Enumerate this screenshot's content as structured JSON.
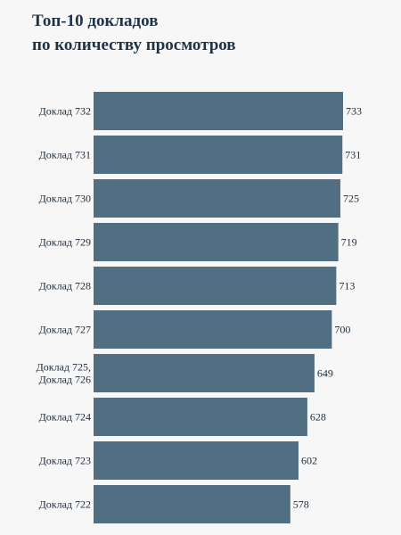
{
  "chart_data": {
    "type": "bar",
    "orientation": "horizontal",
    "title_lines": [
      "Топ-10 докладов",
      "по количеству просмотров"
    ],
    "categories": [
      [
        "Доклад 732"
      ],
      [
        "Доклад 731"
      ],
      [
        "Доклад 730"
      ],
      [
        "Доклад 729"
      ],
      [
        "Доклад 728"
      ],
      [
        "Доклад 727"
      ],
      [
        "Доклад 725,",
        "Доклад 726"
      ],
      [
        "Доклад 724"
      ],
      [
        "Доклад 723"
      ],
      [
        "Доклад 722"
      ]
    ],
    "values": [
      733,
      731,
      725,
      719,
      713,
      700,
      649,
      628,
      602,
      578
    ],
    "data_labels": [
      "733",
      "731",
      "725",
      "719",
      "713",
      "700",
      "649",
      "628",
      "602",
      "578"
    ],
    "xlim": [
      0,
      733
    ],
    "grid": false,
    "bar_color": "#526e82"
  }
}
